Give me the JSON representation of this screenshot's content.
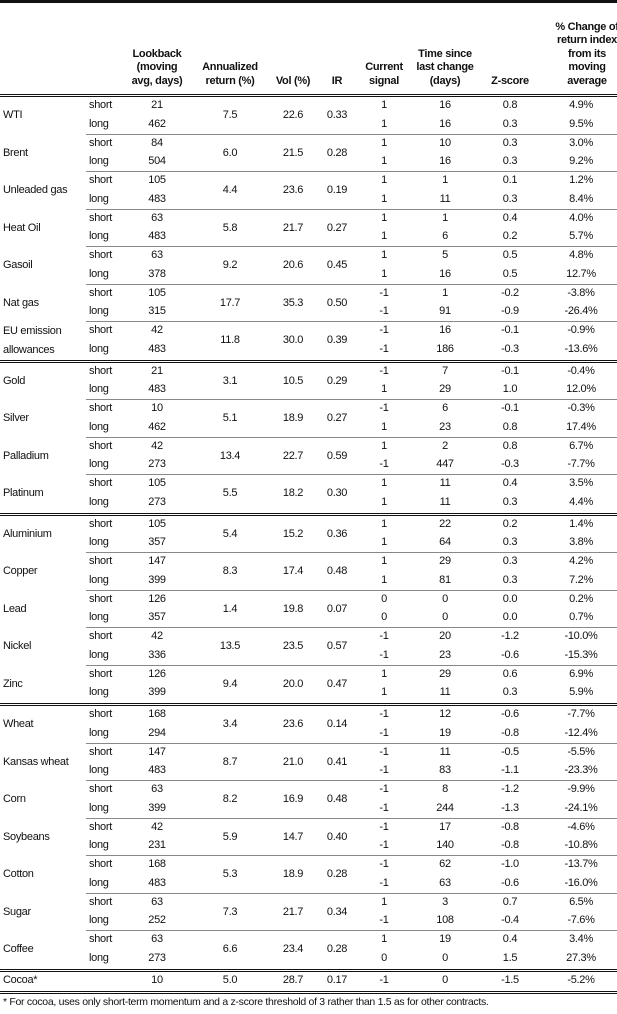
{
  "headers": {
    "lookback": [
      "Lookback",
      "(moving",
      "avg, days)"
    ],
    "ann": [
      "Annualized",
      "return (%)"
    ],
    "vol": [
      "Vol (%)"
    ],
    "ir": [
      "IR"
    ],
    "signal": [
      "Current",
      "signal"
    ],
    "time": [
      "Time since",
      "last change",
      "(days)"
    ],
    "z": [
      "Z-score"
    ],
    "pct": [
      "% Change of",
      "return index",
      "from its",
      "moving",
      "average"
    ]
  },
  "labels": {
    "short": "short",
    "long": "long"
  },
  "sections": [
    [
      {
        "name": "WTI",
        "ann": "7.5",
        "vol": "22.6",
        "ir": "0.33",
        "short": [
          "21",
          "1",
          "16",
          "0.8",
          "4.9%"
        ],
        "long": [
          "462",
          "1",
          "16",
          "0.3",
          "9.5%"
        ]
      },
      {
        "name": "Brent",
        "ann": "6.0",
        "vol": "21.5",
        "ir": "0.28",
        "short": [
          "84",
          "1",
          "10",
          "0.3",
          "3.0%"
        ],
        "long": [
          "504",
          "1",
          "16",
          "0.3",
          "9.2%"
        ]
      },
      {
        "name": "Unleaded gas",
        "ann": "4.4",
        "vol": "23.6",
        "ir": "0.19",
        "short": [
          "105",
          "1",
          "1",
          "0.1",
          "1.2%"
        ],
        "long": [
          "483",
          "1",
          "11",
          "0.3",
          "8.4%"
        ]
      },
      {
        "name": "Heat Oil",
        "ann": "5.8",
        "vol": "21.7",
        "ir": "0.27",
        "short": [
          "63",
          "1",
          "1",
          "0.4",
          "4.0%"
        ],
        "long": [
          "483",
          "1",
          "6",
          "0.2",
          "5.7%"
        ]
      },
      {
        "name": "Gasoil",
        "ann": "9.2",
        "vol": "20.6",
        "ir": "0.45",
        "short": [
          "63",
          "1",
          "5",
          "0.5",
          "4.8%"
        ],
        "long": [
          "378",
          "1",
          "16",
          "0.5",
          "12.7%"
        ]
      },
      {
        "name": "Nat gas",
        "ann": "17.7",
        "vol": "35.3",
        "ir": "0.50",
        "short": [
          "105",
          "-1",
          "1",
          "-0.2",
          "-3.8%"
        ],
        "long": [
          "315",
          "-1",
          "91",
          "-0.9",
          "-26.4%"
        ]
      },
      {
        "name": "EU emission allowances",
        "ann": "11.8",
        "vol": "30.0",
        "ir": "0.39",
        "short": [
          "42",
          "-1",
          "16",
          "-0.1",
          "-0.9%"
        ],
        "long": [
          "483",
          "-1",
          "186",
          "-0.3",
          "-13.6%"
        ]
      }
    ],
    [
      {
        "name": "Gold",
        "ann": "3.1",
        "vol": "10.5",
        "ir": "0.29",
        "short": [
          "21",
          "-1",
          "7",
          "-0.1",
          "-0.4%"
        ],
        "long": [
          "483",
          "1",
          "29",
          "1.0",
          "12.0%"
        ]
      },
      {
        "name": "Silver",
        "ann": "5.1",
        "vol": "18.9",
        "ir": "0.27",
        "short": [
          "10",
          "-1",
          "6",
          "-0.1",
          "-0.3%"
        ],
        "long": [
          "462",
          "1",
          "23",
          "0.8",
          "17.4%"
        ]
      },
      {
        "name": "Palladium",
        "ann": "13.4",
        "vol": "22.7",
        "ir": "0.59",
        "short": [
          "42",
          "1",
          "2",
          "0.8",
          "6.7%"
        ],
        "long": [
          "273",
          "-1",
          "447",
          "-0.3",
          "-7.7%"
        ]
      },
      {
        "name": "Platinum",
        "ann": "5.5",
        "vol": "18.2",
        "ir": "0.30",
        "short": [
          "105",
          "1",
          "11",
          "0.4",
          "3.5%"
        ],
        "long": [
          "273",
          "1",
          "11",
          "0.3",
          "4.4%"
        ]
      }
    ],
    [
      {
        "name": "Aluminium",
        "ann": "5.4",
        "vol": "15.2",
        "ir": "0.36",
        "short": [
          "105",
          "1",
          "22",
          "0.2",
          "1.4%"
        ],
        "long": [
          "357",
          "1",
          "64",
          "0.3",
          "3.8%"
        ]
      },
      {
        "name": "Copper",
        "ann": "8.3",
        "vol": "17.4",
        "ir": "0.48",
        "short": [
          "147",
          "1",
          "29",
          "0.3",
          "4.2%"
        ],
        "long": [
          "399",
          "1",
          "81",
          "0.3",
          "7.2%"
        ]
      },
      {
        "name": "Lead",
        "ann": "1.4",
        "vol": "19.8",
        "ir": "0.07",
        "short": [
          "126",
          "0",
          "0",
          "0.0",
          "0.2%"
        ],
        "long": [
          "357",
          "0",
          "0",
          "0.0",
          "0.7%"
        ]
      },
      {
        "name": "Nickel",
        "ann": "13.5",
        "vol": "23.5",
        "ir": "0.57",
        "short": [
          "42",
          "-1",
          "20",
          "-1.2",
          "-10.0%"
        ],
        "long": [
          "336",
          "-1",
          "23",
          "-0.6",
          "-15.3%"
        ]
      },
      {
        "name": "Zinc",
        "ann": "9.4",
        "vol": "20.0",
        "ir": "0.47",
        "short": [
          "126",
          "1",
          "29",
          "0.6",
          "6.9%"
        ],
        "long": [
          "399",
          "1",
          "11",
          "0.3",
          "5.9%"
        ]
      }
    ],
    [
      {
        "name": "Wheat",
        "ann": "3.4",
        "vol": "23.6",
        "ir": "0.14",
        "short": [
          "168",
          "-1",
          "12",
          "-0.6",
          "-7.7%"
        ],
        "long": [
          "294",
          "-1",
          "19",
          "-0.8",
          "-12.4%"
        ]
      },
      {
        "name": "Kansas wheat",
        "ann": "8.7",
        "vol": "21.0",
        "ir": "0.41",
        "short": [
          "147",
          "-1",
          "11",
          "-0.5",
          "-5.5%"
        ],
        "long": [
          "483",
          "-1",
          "83",
          "-1.1",
          "-23.3%"
        ]
      },
      {
        "name": "Corn",
        "ann": "8.2",
        "vol": "16.9",
        "ir": "0.48",
        "short": [
          "63",
          "-1",
          "8",
          "-1.2",
          "-9.9%"
        ],
        "long": [
          "399",
          "-1",
          "244",
          "-1.3",
          "-24.1%"
        ]
      },
      {
        "name": "Soybeans",
        "ann": "5.9",
        "vol": "14.7",
        "ir": "0.40",
        "short": [
          "42",
          "-1",
          "17",
          "-0.8",
          "-4.6%"
        ],
        "long": [
          "231",
          "-1",
          "140",
          "-0.8",
          "-10.8%"
        ]
      },
      {
        "name": "Cotton",
        "ann": "5.3",
        "vol": "18.9",
        "ir": "0.28",
        "short": [
          "168",
          "-1",
          "62",
          "-1.0",
          "-13.7%"
        ],
        "long": [
          "483",
          "-1",
          "63",
          "-0.6",
          "-16.0%"
        ]
      },
      {
        "name": "Sugar",
        "ann": "7.3",
        "vol": "21.7",
        "ir": "0.34",
        "short": [
          "63",
          "1",
          "3",
          "0.7",
          "6.5%"
        ],
        "long": [
          "252",
          "-1",
          "108",
          "-0.4",
          "-7.6%"
        ]
      },
      {
        "name": "Coffee",
        "ann": "6.6",
        "vol": "23.4",
        "ir": "0.28",
        "short": [
          "63",
          "1",
          "19",
          "0.4",
          "3.4%"
        ],
        "long": [
          "273",
          "0",
          "0",
          "1.5",
          "27.3%"
        ]
      }
    ]
  ],
  "cocoa": {
    "name": "Cocoa*",
    "lookback": "10",
    "ann": "5.0",
    "vol": "28.7",
    "ir": "0.17",
    "signal": "-1",
    "time": "0",
    "z": "-1.5",
    "pct": "-5.2%"
  },
  "footnote": "* For cocoa, uses only short-term momentum and a z-score threshold of 3 rather than 1.5 as for other contracts."
}
